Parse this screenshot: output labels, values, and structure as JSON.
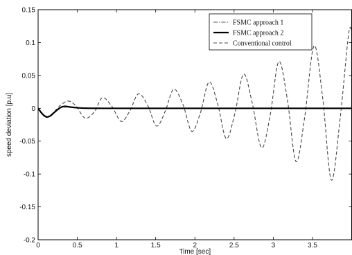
{
  "chart_data": {
    "type": "line",
    "title": "",
    "xlabel": "Time [sec]",
    "ylabel": "speed deviation [p.u]",
    "xlim": [
      0,
      4
    ],
    "ylim": [
      -0.2,
      0.15
    ],
    "xticks": [
      0,
      0.5,
      1,
      1.5,
      2,
      2.5,
      3,
      3.5
    ],
    "xtick_labels": [
      "0",
      "0.5",
      "1",
      "1.5",
      "2",
      "2.5",
      "3",
      "3.5"
    ],
    "yticks": [
      -0.2,
      -0.15,
      -0.1,
      -0.05,
      0,
      0.05,
      0.1,
      0.15
    ],
    "ytick_labels": [
      "-0.2",
      "-0.15",
      "-0.1",
      "-0.05",
      "0",
      "0.05",
      "0.1",
      "0.15"
    ],
    "grid": false,
    "legend_position": "top-right",
    "series": [
      {
        "name": "FSMC approach 1",
        "style": "dashdot",
        "color": "#555555",
        "x": [
          0,
          0.05,
          0.1,
          0.15,
          0.2,
          0.25,
          0.3,
          0.4,
          0.5,
          0.6,
          0.8,
          1.0,
          1.5,
          2.0,
          2.5,
          3.0,
          3.5,
          4.0
        ],
        "y": [
          0,
          -0.007,
          -0.012,
          -0.011,
          -0.006,
          -0.002,
          0.001,
          0.002,
          0.001,
          0.0005,
          0,
          0,
          0,
          0,
          0,
          0,
          0,
          0
        ]
      },
      {
        "name": "FSMC approach 2",
        "style": "solid",
        "color": "#000000",
        "x": [
          0,
          0.05,
          0.1,
          0.15,
          0.2,
          0.25,
          0.3,
          0.35,
          0.4,
          0.5,
          0.6,
          0.8,
          1.0,
          1.5,
          2.0,
          2.5,
          3.0,
          3.5,
          4.0
        ],
        "y": [
          0,
          -0.008,
          -0.013,
          -0.012,
          -0.007,
          -0.002,
          0.002,
          0.003,
          0.002,
          0.0008,
          0.0002,
          0,
          0,
          0,
          0,
          0,
          0,
          0,
          0
        ]
      },
      {
        "name": "Conventional control",
        "style": "dashed",
        "color": "#444444",
        "x": [
          0,
          0.05,
          0.12,
          0.2,
          0.28,
          0.38,
          0.48,
          0.6,
          0.72,
          0.82,
          0.94,
          1.06,
          1.17,
          1.28,
          1.4,
          1.51,
          1.62,
          1.73,
          1.85,
          1.96,
          2.07,
          2.18,
          2.29,
          2.4,
          2.51,
          2.62,
          2.73,
          2.85,
          2.96,
          3.07,
          3.18,
          3.29,
          3.4,
          3.52,
          3.63,
          3.74,
          3.85,
          3.96,
          4.0
        ],
        "y": [
          0,
          -0.008,
          -0.013,
          -0.006,
          0.004,
          0.011,
          0.004,
          -0.015,
          -0.005,
          0.016,
          0.003,
          -0.02,
          -0.004,
          0.022,
          0.004,
          -0.027,
          -0.005,
          0.029,
          0.005,
          -0.035,
          -0.007,
          0.04,
          0.007,
          -0.046,
          -0.008,
          0.052,
          0.009,
          -0.06,
          -0.011,
          0.071,
          0.013,
          -0.081,
          -0.014,
          0.095,
          0.016,
          -0.109,
          -0.019,
          0.112,
          0.117
        ]
      }
    ]
  }
}
